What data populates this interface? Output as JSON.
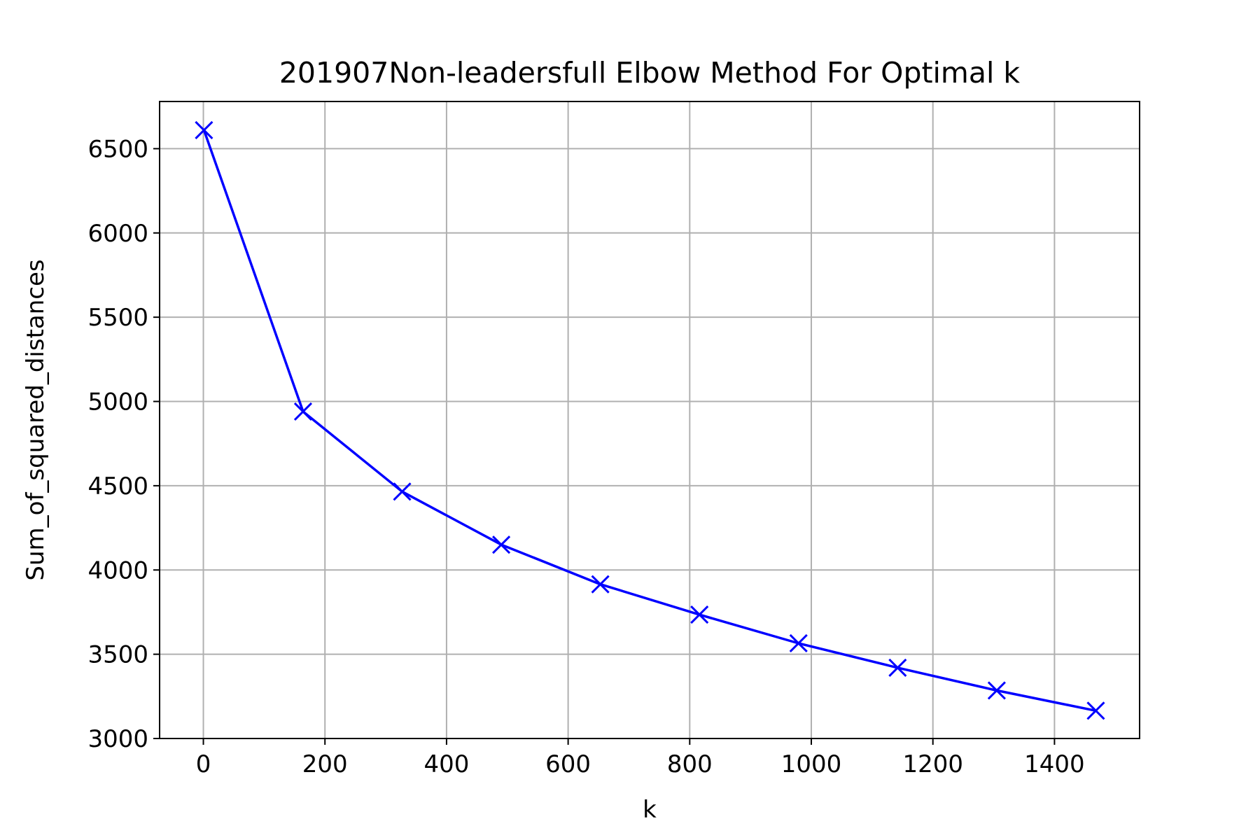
{
  "chart_data": {
    "type": "line",
    "title": "201907Non-leadersfull Elbow Method For Optimal k",
    "xlabel": "k",
    "ylabel": "Sum_of_squared_distances",
    "xlim": [
      -72,
      1540
    ],
    "ylim": [
      3000,
      6780
    ],
    "xticks": [
      0,
      200,
      400,
      600,
      800,
      1000,
      1200,
      1400
    ],
    "yticks": [
      3000,
      3500,
      4000,
      4500,
      5000,
      5500,
      6000,
      6500
    ],
    "grid": true,
    "series": [
      {
        "color": "#0000ff",
        "marker": "x",
        "x": [
          1,
          164,
          327,
          490,
          653,
          816,
          979,
          1142,
          1305,
          1468
        ],
        "y": [
          6610,
          4940,
          4465,
          4150,
          3915,
          3735,
          3565,
          3420,
          3285,
          3165
        ]
      }
    ]
  }
}
